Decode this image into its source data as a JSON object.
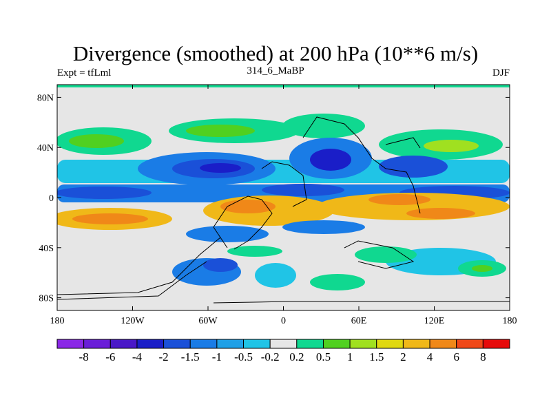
{
  "title": "Divergence (smoothed) at 200 hPa (10**6 m/s)",
  "left_label": "Expt = tfLml",
  "center_label": "314_6_MaBP",
  "right_label": "DJF",
  "x_ticks": [
    {
      "lon": -180,
      "label": "180"
    },
    {
      "lon": -120,
      "label": "120W"
    },
    {
      "lon": -60,
      "label": "60W"
    },
    {
      "lon": 0,
      "label": "0"
    },
    {
      "lon": 60,
      "label": "60E"
    },
    {
      "lon": 120,
      "label": "120E"
    },
    {
      "lon": 180,
      "label": "180"
    }
  ],
  "y_ticks": [
    {
      "lat": 80,
      "label": "80N"
    },
    {
      "lat": 40,
      "label": "40N"
    },
    {
      "lat": 0,
      "label": "0"
    },
    {
      "lat": -40,
      "label": "40S"
    },
    {
      "lat": -80,
      "label": "80S"
    }
  ],
  "colorbar": {
    "colors": [
      "#8a28e6",
      "#6a1ed8",
      "#4a18c8",
      "#1a1ec8",
      "#1a50d8",
      "#1a7ce6",
      "#20a0e6",
      "#20c4e6",
      "#e6e6e6",
      "#10d890",
      "#50d020",
      "#a0e020",
      "#e0d810",
      "#f0b818",
      "#f08818",
      "#f04818",
      "#e60a0a"
    ],
    "labels": [
      "-8",
      "-6",
      "-4",
      "-2",
      "-1.5",
      "-1",
      "-0.5",
      "-0.2",
      "0.2",
      "0.5",
      "1",
      "1.5",
      "2",
      "4",
      "6",
      "8"
    ]
  }
}
